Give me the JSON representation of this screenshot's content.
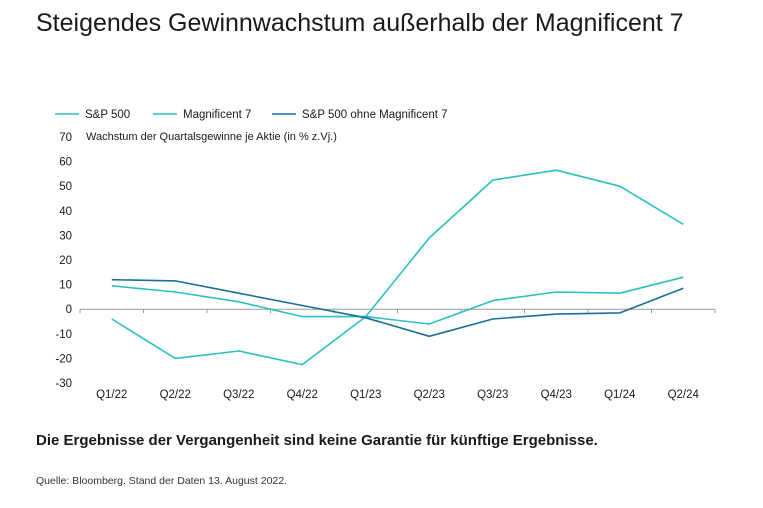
{
  "title": "Steigendes Gewinnwachstum außerhalb der Magnificent 7",
  "disclaimer": "Die Ergebnisse der Vergangenheit sind keine Garantie für künftige Ergebnisse.",
  "source": "Quelle: Bloomberg. Stand der Daten 13. August 2022.",
  "chart_data": {
    "type": "line",
    "title": "Steigendes Gewinnwachstum außerhalb der Magnificent 7",
    "ylabel": "Wachstum der Quartalsgewinne je Aktie (in % z.Vj.)",
    "xlabel": "",
    "categories": [
      "Q1/22",
      "Q2/22",
      "Q3/22",
      "Q4/22",
      "Q1/23",
      "Q2/23",
      "Q3/23",
      "Q4/23",
      "Q1/24",
      "Q2/24"
    ],
    "ylim": [
      -30,
      70
    ],
    "yticks": [
      70,
      60,
      50,
      40,
      30,
      20,
      10,
      0,
      -10,
      -20,
      -30
    ],
    "grid": false,
    "legend_position": "top-left",
    "series": [
      {
        "name": "S&P 500",
        "color": "#2cbfc0",
        "values": [
          9.5,
          7,
          3,
          -3,
          -3,
          -6,
          3.5,
          7,
          6.5,
          13
        ]
      },
      {
        "name": "Magnificent 7",
        "color": "#2cbfc0",
        "values": [
          -4,
          -20,
          -17,
          -22.5,
          -3,
          29,
          52.5,
          56.5,
          50,
          34.5
        ]
      },
      {
        "name": "S&P 500 ohne Magnificent 7",
        "color": "#1a6f99",
        "values": [
          12,
          11.5,
          6.5,
          1.5,
          -3.5,
          -11,
          -4,
          -2,
          -1.5,
          8.5
        ]
      }
    ]
  }
}
